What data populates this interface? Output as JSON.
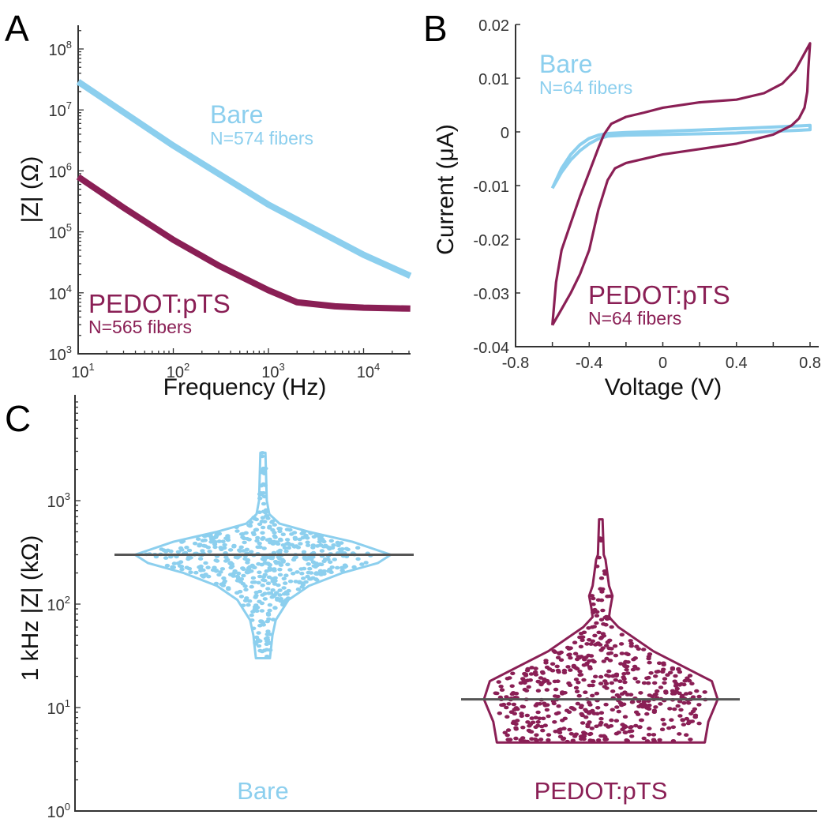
{
  "colors": {
    "bare": "#8ccfee",
    "pedot": "#8a1f55",
    "median": "#555555",
    "axis": "#333333"
  },
  "panels": {
    "a": "A",
    "b": "B",
    "c": "C"
  },
  "chart_data": [
    {
      "type": "line",
      "panel": "A",
      "xlabel": "Frequency (Hz)",
      "ylabel": "|Z| (Ω)",
      "xscale": "log",
      "yscale": "log",
      "xlim": [
        10,
        31000
      ],
      "ylim": [
        1000,
        250000000
      ],
      "xticks": [
        10,
        100,
        1000,
        10000
      ],
      "yticks": [
        1000,
        10000,
        100000,
        1000000,
        10000000,
        100000000
      ],
      "grid": false,
      "series": [
        {
          "name": "Bare",
          "note": "N=574 fibers",
          "color": "#8ccfee",
          "x": [
            10,
            100,
            1000,
            10000,
            31000
          ],
          "y": [
            29000000,
            2600000,
            280000,
            42000,
            19000
          ]
        },
        {
          "name": "PEDOT:pTS",
          "note": "N=565 fibers",
          "color": "#8a1f55",
          "x": [
            10,
            30,
            100,
            300,
            1000,
            2000,
            5000,
            10000,
            31000
          ],
          "y": [
            800000,
            250000,
            74000,
            28000,
            11000,
            7000,
            6000,
            5700,
            5500
          ]
        }
      ]
    },
    {
      "type": "line",
      "panel": "B",
      "xlabel": "Voltage (V)",
      "ylabel": "Current (μA)",
      "xlim": [
        -0.8,
        0.8
      ],
      "ylim": [
        -0.04,
        0.02
      ],
      "xticks": [
        -0.8,
        -0.4,
        0,
        0.4,
        0.8
      ],
      "xtick_labels": [
        "-0.8",
        "-0.4",
        "0",
        "0.4",
        "0.8"
      ],
      "yticks": [
        -0.04,
        -0.03,
        -0.02,
        -0.01,
        0,
        0.01,
        0.02
      ],
      "ytick_labels": [
        "-0.04",
        "-0.03",
        "-0.02",
        "-0.01",
        "0",
        "0.01",
        "0.02"
      ],
      "grid": false,
      "series": [
        {
          "name": "Bare",
          "note": "N=64 fibers",
          "color": "#8ccfee",
          "x": [
            -0.6,
            -0.55,
            -0.5,
            -0.45,
            -0.4,
            -0.35,
            -0.3,
            -0.2,
            0,
            0.4,
            0.8,
            0.8,
            0.4,
            0,
            -0.2,
            -0.3,
            -0.35,
            -0.4,
            -0.45,
            -0.5,
            -0.55,
            -0.6
          ],
          "y": [
            -0.0105,
            -0.0075,
            -0.0052,
            -0.0035,
            -0.0022,
            -0.0013,
            -0.0008,
            -0.0006,
            -0.0005,
            -0.0002,
            0.0004,
            0.0012,
            0.0006,
            0.0001,
            -0.0001,
            -0.0003,
            -0.0006,
            -0.0012,
            -0.0024,
            -0.0042,
            -0.0068,
            -0.0105
          ]
        },
        {
          "name": "PEDOT:pTS",
          "note": "N=64 fibers",
          "color": "#8a1f55",
          "x": [
            -0.6,
            -0.58,
            -0.55,
            -0.5,
            -0.45,
            -0.4,
            -0.35,
            -0.32,
            -0.28,
            -0.2,
            -0.1,
            0,
            0.2,
            0.4,
            0.55,
            0.65,
            0.72,
            0.8,
            0.79,
            0.785,
            0.77,
            0.74,
            0.7,
            0.6,
            0.4,
            0.2,
            0,
            -0.2,
            -0.26,
            -0.3,
            -0.35,
            -0.4,
            -0.45,
            -0.5,
            -0.55,
            -0.6
          ],
          "y": [
            -0.036,
            -0.028,
            -0.022,
            -0.017,
            -0.012,
            -0.0075,
            -0.003,
            -0.0005,
            0.0015,
            0.0028,
            0.0036,
            0.0045,
            0.0055,
            0.006,
            0.0072,
            0.009,
            0.0115,
            0.0165,
            0.0115,
            0.0075,
            0.0045,
            0.0025,
            0.0012,
            -0.0005,
            -0.0022,
            -0.0032,
            -0.0042,
            -0.0058,
            -0.0068,
            -0.009,
            -0.0145,
            -0.022,
            -0.0265,
            -0.03,
            -0.033,
            -0.036
          ]
        }
      ]
    },
    {
      "type": "violin",
      "panel": "C",
      "ylabel": "1 kHz |Z| (kΩ)",
      "yscale": "log",
      "ylim": [
        1,
        10000
      ],
      "yticks": [
        1,
        10,
        100,
        1000
      ],
      "categories": [
        "Bare",
        "PEDOT:pTS"
      ],
      "grid": false,
      "series": [
        {
          "name": "Bare",
          "color": "#8ccfee",
          "n": 574,
          "median": 300,
          "profile_values": [
            2900,
            1000,
            740,
            600,
            500,
            400,
            300,
            250,
            200,
            150,
            110,
            70,
            50,
            30
          ],
          "profile_density": [
            0.02,
            0.03,
            0.05,
            0.13,
            0.36,
            0.7,
            1.0,
            0.9,
            0.62,
            0.36,
            0.2,
            0.1,
            0.075,
            0.055
          ]
        },
        {
          "name": "PEDOT:pTS",
          "color": "#8a1f55",
          "n": 565,
          "median": 12,
          "profile_values": [
            660,
            300,
            270,
            150,
            120,
            90,
            75,
            60,
            35,
            18,
            12,
            7.3,
            4.6
          ],
          "profile_density": [
            0.015,
            0.025,
            0.04,
            0.07,
            0.1,
            0.08,
            0.07,
            0.15,
            0.45,
            0.95,
            1.0,
            0.92,
            0.89
          ]
        }
      ]
    }
  ]
}
